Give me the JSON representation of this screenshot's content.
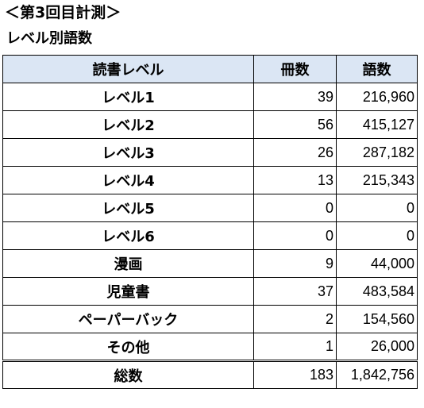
{
  "colors": {
    "header_bg": "#dbe6f4",
    "border": "#000000"
  },
  "heading": "＜第3回目計測＞",
  "subheading": "レベル別語数",
  "table": {
    "headers": [
      "読書レベル",
      "冊数",
      "語数"
    ],
    "rows": [
      {
        "level": "レベル1",
        "books": "39",
        "words": "216,960"
      },
      {
        "level": "レベル2",
        "books": "56",
        "words": "415,127"
      },
      {
        "level": "レベル3",
        "books": "26",
        "words": "287,182"
      },
      {
        "level": "レベル4",
        "books": "13",
        "words": "215,343"
      },
      {
        "level": "レベル5",
        "books": "0",
        "words": "0"
      },
      {
        "level": "レベル6",
        "books": "0",
        "words": "0"
      },
      {
        "level": "漫画",
        "books": "9",
        "words": "44,000"
      },
      {
        "level": "児童書",
        "books": "37",
        "words": "483,584"
      },
      {
        "level": "ペーパーバック",
        "books": "2",
        "words": "154,560"
      },
      {
        "level": "その他",
        "books": "1",
        "words": "26,000"
      }
    ],
    "total": {
      "level": "総数",
      "books": "183",
      "words": "1,842,756"
    }
  }
}
